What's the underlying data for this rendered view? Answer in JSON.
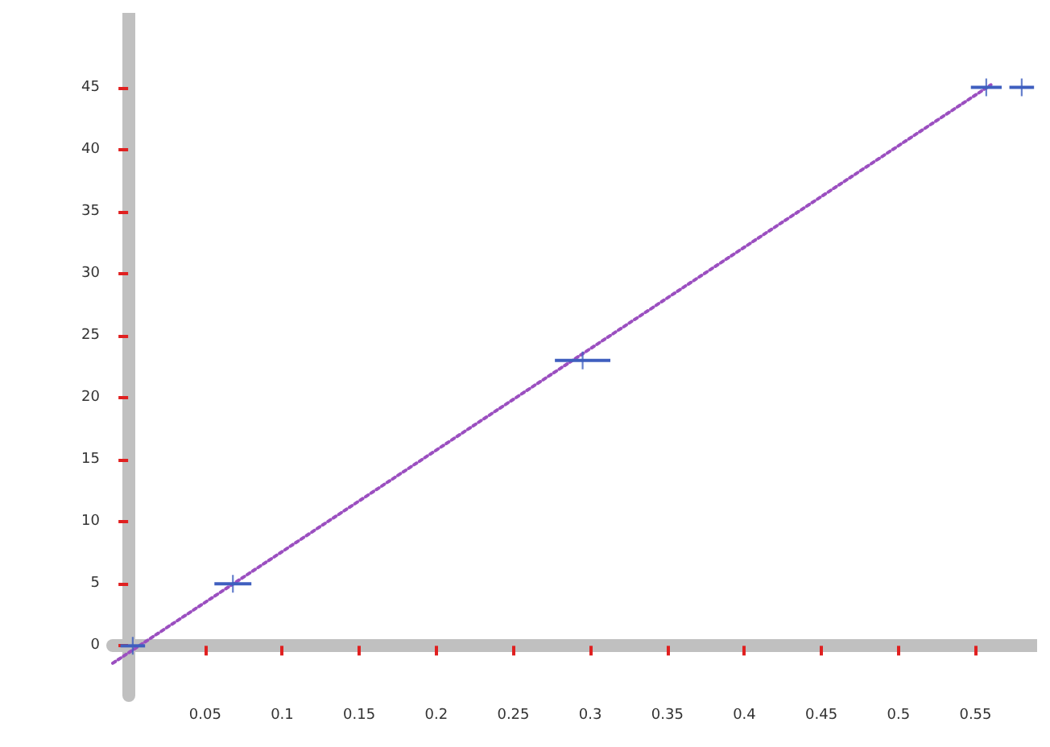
{
  "chart_data": {
    "type": "scatter",
    "xlim": [
      -0.01,
      0.59
    ],
    "xticks": [
      0.05,
      0.1,
      0.15,
      0.2,
      0.25,
      0.3,
      0.35,
      0.4,
      0.45,
      0.5,
      0.55
    ],
    "ylim": [
      -4,
      51
    ],
    "yticks": [
      0,
      5,
      10,
      15,
      20,
      25,
      30,
      35,
      40,
      45
    ],
    "series": [
      {
        "color": "#3f5fbf",
        "marker": "cross",
        "x": [
          0.003,
          0.068,
          0.295,
          0.557,
          0.58
        ],
        "values": [
          0,
          5,
          23,
          45,
          45
        ],
        "xerrors": [
          0.008,
          0.012,
          0.018,
          0.01,
          0.008
        ]
      },
      {
        "type": "line",
        "color": "#9b4fc0",
        "line_style": "dotted",
        "marker": "none",
        "x": [
          -0.01,
          0.56
        ],
        "values": [
          -1.4,
          45.2
        ]
      }
    ]
  }
}
